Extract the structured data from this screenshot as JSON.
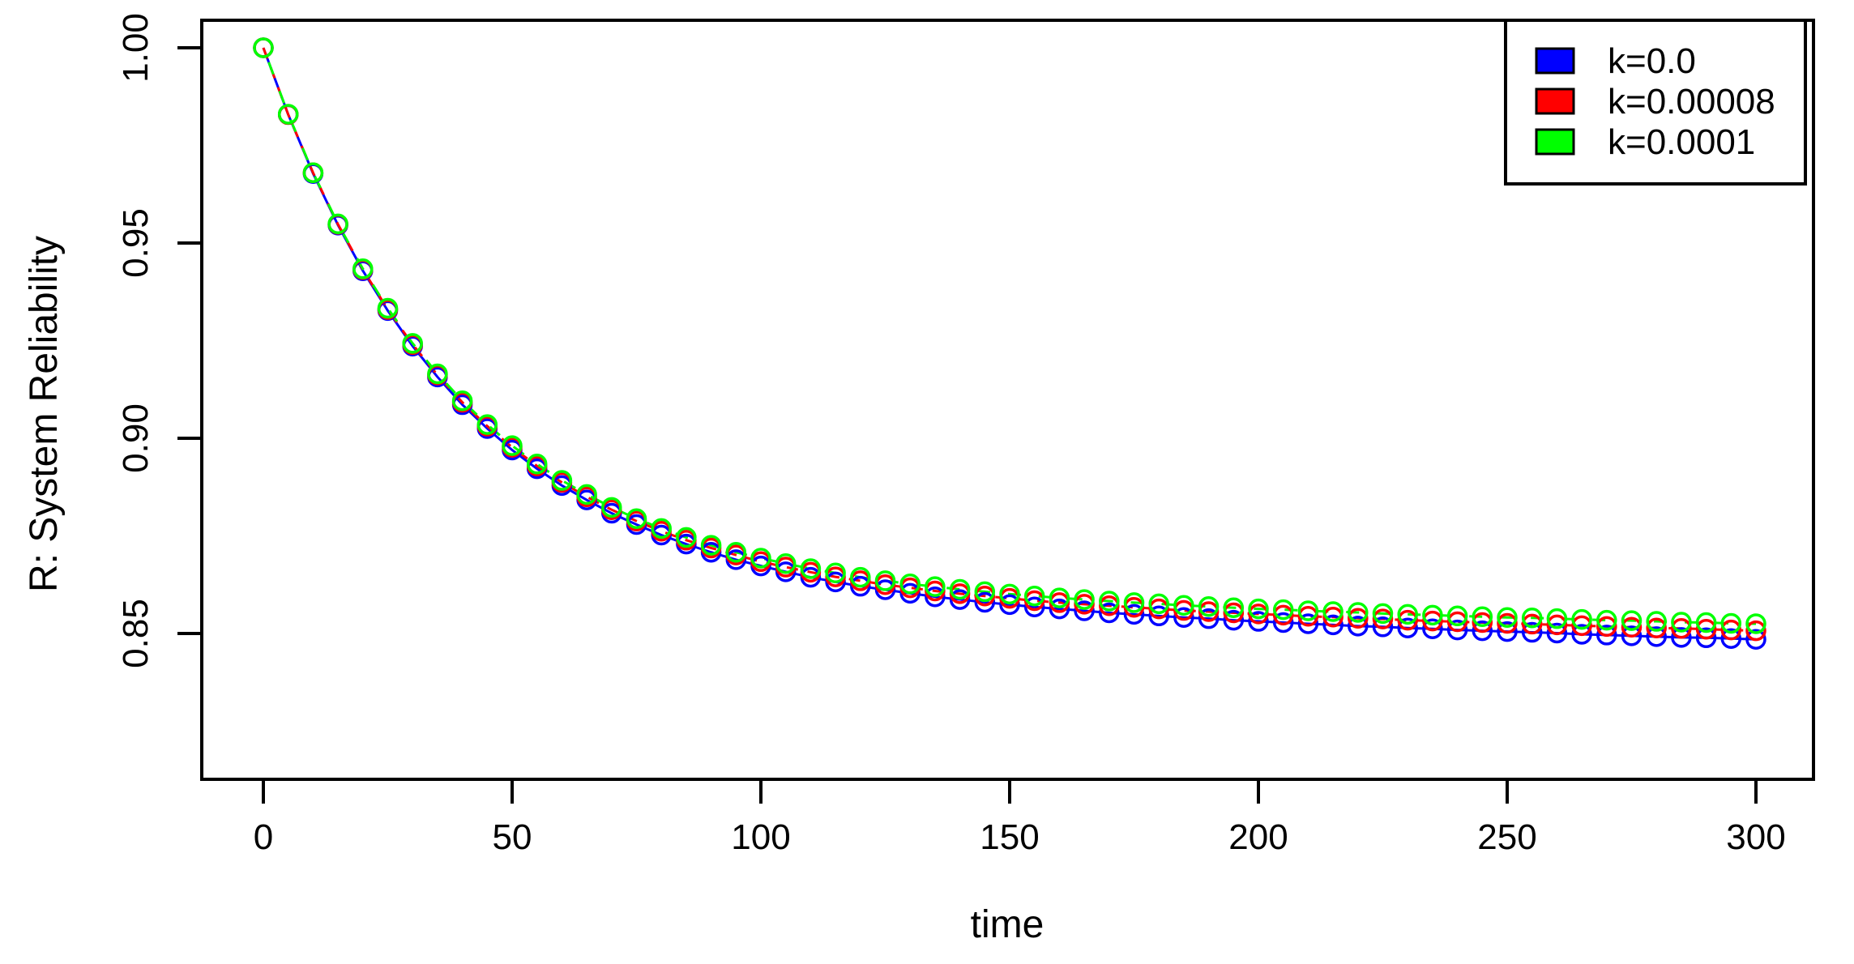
{
  "figure": {
    "background": "#ffffff",
    "frame_color": "#000000"
  },
  "axes": {
    "x": {
      "label": "time",
      "tick_labels": [
        "0",
        "50",
        "100",
        "150",
        "200",
        "250",
        "300"
      ],
      "tick_values": [
        0,
        50,
        100,
        150,
        200,
        250,
        300
      ],
      "range": [
        -12,
        312
      ]
    },
    "y": {
      "label": "R: System Reliability",
      "tick_labels": [
        "1.00",
        "0.95",
        "0.90",
        "0.85"
      ],
      "tick_values": [
        1.0,
        0.95,
        0.9,
        0.85
      ],
      "range": [
        0.8126,
        1.0071
      ]
    }
  },
  "legend": {
    "position": "topright",
    "items": [
      {
        "label": "k=0.0",
        "color": "#0000ff"
      },
      {
        "label": "k=0.00008",
        "color": "#ff0000"
      },
      {
        "label": "k=0.0001",
        "color": "#00ff00"
      }
    ]
  },
  "chart_data": {
    "type": "scatter",
    "title": "",
    "xlabel": "time",
    "ylabel": "R: System Reliability",
    "xlim": [
      -12,
      312
    ],
    "ylim": [
      0.8126,
      1.0071
    ],
    "grid": false,
    "legend_position": "topright",
    "marker": "open-circle",
    "x": [
      0,
      5,
      10,
      15,
      20,
      25,
      30,
      35,
      40,
      45,
      50,
      55,
      60,
      65,
      70,
      75,
      80,
      85,
      90,
      95,
      100,
      105,
      110,
      115,
      120,
      125,
      130,
      135,
      140,
      145,
      150,
      155,
      160,
      165,
      170,
      175,
      180,
      185,
      190,
      195,
      200,
      205,
      210,
      215,
      220,
      225,
      230,
      235,
      240,
      245,
      250,
      255,
      260,
      265,
      270,
      275,
      280,
      285,
      290,
      295,
      300
    ],
    "series": [
      {
        "name": "k=0.0",
        "color": "#0000ff",
        "line": "solid",
        "values": [
          1.0,
          0.9829,
          0.9678,
          0.9546,
          0.9429,
          0.9327,
          0.9236,
          0.9157,
          0.9086,
          0.9025,
          0.897,
          0.8922,
          0.8879,
          0.8842,
          0.8808,
          0.8779,
          0.8752,
          0.8729,
          0.8708,
          0.8689,
          0.8673,
          0.8658,
          0.8644,
          0.8632,
          0.8621,
          0.8612,
          0.8603,
          0.8594,
          0.8587,
          0.858,
          0.8574,
          0.8568,
          0.8563,
          0.8558,
          0.8553,
          0.8549,
          0.8545,
          0.8541,
          0.8538,
          0.8534,
          0.8531,
          0.8528,
          0.8525,
          0.8522,
          0.8519,
          0.8517,
          0.8514,
          0.8512,
          0.8509,
          0.8507,
          0.8505,
          0.8503,
          0.8501,
          0.8498,
          0.8496,
          0.8494,
          0.8492,
          0.849,
          0.8489,
          0.8487,
          0.8485
        ]
      },
      {
        "name": "k=0.00008",
        "color": "#ff0000",
        "line": "dashed",
        "values": [
          1.0,
          0.9829,
          0.968,
          0.9548,
          0.9432,
          0.933,
          0.924,
          0.9162,
          0.9092,
          0.9031,
          0.8977,
          0.8929,
          0.8887,
          0.885,
          0.8817,
          0.8788,
          0.8762,
          0.8739,
          0.8719,
          0.8701,
          0.8684,
          0.867,
          0.8657,
          0.8645,
          0.8635,
          0.8625,
          0.8617,
          0.8609,
          0.8602,
          0.8596,
          0.859,
          0.8584,
          0.8579,
          0.8575,
          0.8571,
          0.8567,
          0.8563,
          0.8559,
          0.8556,
          0.8553,
          0.855,
          0.8547,
          0.8544,
          0.8542,
          0.8539,
          0.8537,
          0.8534,
          0.8532,
          0.853,
          0.8528,
          0.8526,
          0.8524,
          0.8522,
          0.852,
          0.8518,
          0.8516,
          0.8514,
          0.8513,
          0.8511,
          0.8509,
          0.8507
        ]
      },
      {
        "name": "k=0.0001",
        "color": "#00ff00",
        "line": "dashed",
        "values": [
          1.0,
          0.983,
          0.968,
          0.9549,
          0.9434,
          0.9333,
          0.9243,
          0.9165,
          0.9096,
          0.9035,
          0.8981,
          0.8934,
          0.8892,
          0.8856,
          0.8823,
          0.8794,
          0.8769,
          0.8746,
          0.8726,
          0.8708,
          0.8693,
          0.8679,
          0.8666,
          0.8655,
          0.8644,
          0.8635,
          0.8627,
          0.862,
          0.8613,
          0.8607,
          0.8601,
          0.8596,
          0.8591,
          0.8587,
          0.8583,
          0.8579,
          0.8576,
          0.8572,
          0.8569,
          0.8566,
          0.8563,
          0.8561,
          0.8558,
          0.8556,
          0.8554,
          0.8551,
          0.8549,
          0.8547,
          0.8545,
          0.8543,
          0.8541,
          0.854,
          0.8538,
          0.8536,
          0.8534,
          0.8533,
          0.8531,
          0.8529,
          0.8528,
          0.8526,
          0.8525
        ]
      }
    ]
  }
}
